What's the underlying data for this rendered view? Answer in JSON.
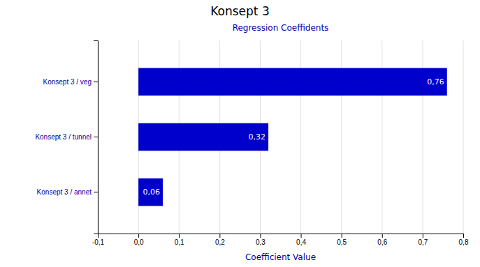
{
  "chart_data": {
    "type": "bar",
    "orientation": "horizontal",
    "title": "Konsept 3",
    "subtitle": "Regression Coeffidents",
    "xlabel": "Coefficient Value",
    "categories": [
      "Konsept 3 / annet",
      "Konsept 3 / tunnel",
      "Konsept 3 / veg"
    ],
    "values": [
      0.06,
      0.32,
      0.76
    ],
    "value_labels": [
      "0,06",
      "0,32",
      "0,76"
    ],
    "data_labels": true,
    "color": "#0000CC",
    "xlim": [
      -0.1,
      0.8
    ],
    "xticks": [
      {
        "value": -0.1,
        "label": "-0,1"
      },
      {
        "value": 0.0,
        "label": "0,0"
      },
      {
        "value": 0.1,
        "label": "0,1"
      },
      {
        "value": 0.2,
        "label": "0,2"
      },
      {
        "value": 0.3,
        "label": "0,3"
      },
      {
        "value": 0.4,
        "label": "0,4"
      },
      {
        "value": 0.5,
        "label": "0,5"
      },
      {
        "value": 0.6,
        "label": "0,6"
      },
      {
        "value": 0.7,
        "label": "0,7"
      },
      {
        "value": 0.8,
        "label": "0,8"
      }
    ],
    "grid": true
  }
}
